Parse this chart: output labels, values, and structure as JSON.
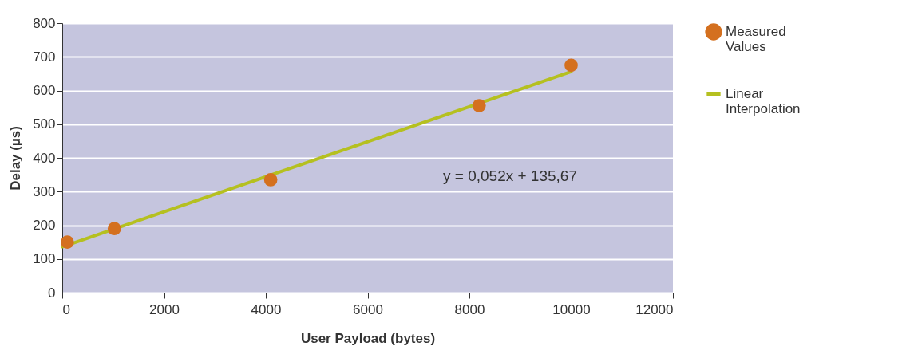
{
  "chart_data": {
    "type": "scatter",
    "xlabel": "User Payload (bytes)",
    "ylabel": "Delay (µs)",
    "xlim": [
      0,
      12000
    ],
    "xticks": [
      0,
      2000,
      4000,
      6000,
      8000,
      10000,
      12000
    ],
    "ylim": [
      0,
      800
    ],
    "yticks": [
      0,
      100,
      200,
      300,
      400,
      500,
      600,
      700,
      800
    ],
    "grid": "y",
    "legend": "right",
    "annotations": [
      "y = 0,052x + 135,67"
    ],
    "series": [
      {
        "name": "Measured Values",
        "color": "#d4701f",
        "marker": "circle",
        "x": [
          100,
          1024,
          4096,
          8192,
          10000
        ],
        "values": [
          150,
          190,
          335,
          555,
          675
        ]
      },
      {
        "name": "Linear Interpolation",
        "type": "line",
        "color": "#b5c020",
        "marker": "none",
        "x": [
          0,
          10000
        ],
        "values": [
          136,
          656
        ]
      }
    ]
  }
}
